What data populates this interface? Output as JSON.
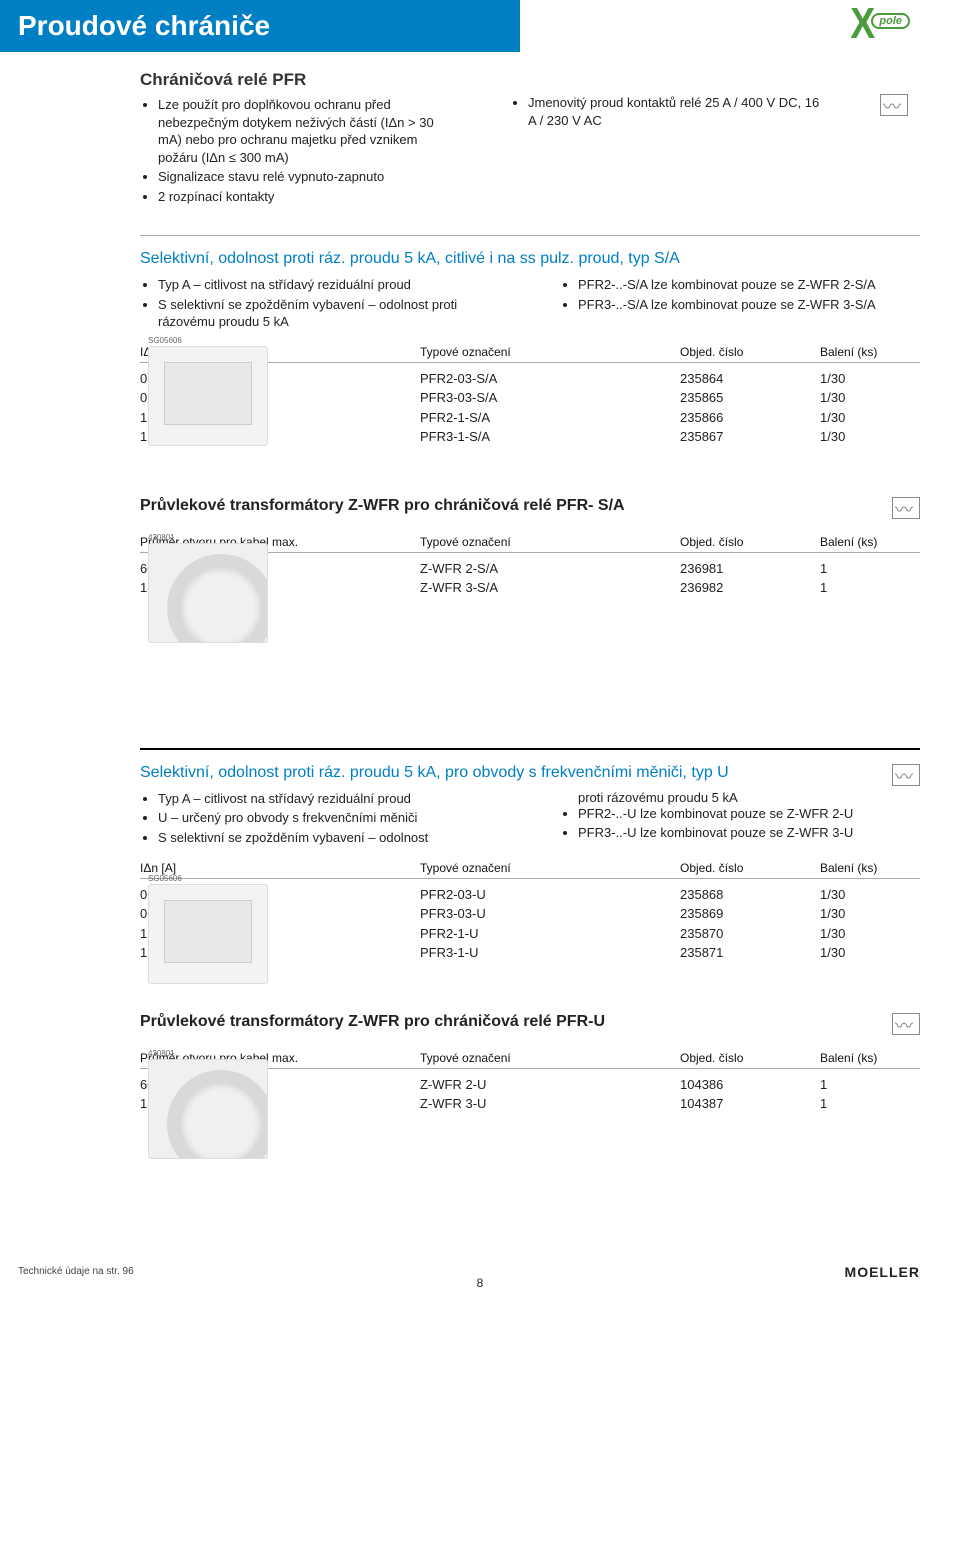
{
  "header": {
    "title": "Proudové chrániče"
  },
  "logo": {
    "x": "X",
    "pill": "pole"
  },
  "intro": {
    "title": "Chráničová relé PFR",
    "left_bullets": [
      "Lze použít pro doplňkovou ochranu před nebezpečným dotykem neživých částí (IΔn > 30 mA) nebo pro ochranu majetku před vznikem požáru (IΔn ≤ 300 mA)",
      "Signalizace stavu relé vypnuto-zapnuto",
      "2 rozpínací kontakty"
    ],
    "right_bullets": [
      "Jmenovitý proud kontaktů relé 25 A / 400 V DC, 16 A / 230 V AC"
    ]
  },
  "section1": {
    "title": "Selektivní, odolnost proti ráz. proudu 5 kA, citlivé i na ss pulz. proud, typ S/A",
    "left_bullets": [
      "Typ A – citlivost na střídavý reziduální proud",
      "S selektivní se zpožděním vybavení – odolnost proti rázovému proudu 5 kA"
    ],
    "right_bullets": [
      "PFR2-..-S/A lze kombinovat pouze se Z-WFR 2-S/A",
      "PFR3-..-S/A lze kombinovat pouze se Z-WFR 3-S/A"
    ],
    "table": {
      "head": [
        "IΔn [A]",
        "Typové označení",
        "Objed. číslo",
        "Balení (ks)"
      ],
      "rows": [
        [
          "0,30",
          "PFR2-03-S/A",
          "235864",
          "1/30"
        ],
        [
          "0,30",
          "PFR3-03-S/A",
          "235865",
          "1/30"
        ],
        [
          "1,0",
          "PFR2-1-S/A",
          "235866",
          "1/30"
        ],
        [
          "1,0",
          "PFR3-1-S/A",
          "235867",
          "1/30"
        ]
      ]
    },
    "side_label": "SG05606"
  },
  "section2": {
    "title": "Průvlekové transformátory Z-WFR pro chráničová relé PFR- S/A",
    "table": {
      "head": [
        "Průměr otvoru pro kabel max.",
        "Typové označení",
        "Objed. číslo",
        "Balení (ks)"
      ],
      "rows": [
        [
          "60 mm",
          "Z-WFR 2-S/A",
          "236981",
          "1"
        ],
        [
          "130 mm",
          "Z-WFR 3-S/A",
          "236982",
          "1"
        ]
      ]
    },
    "side_label": "420801"
  },
  "section3": {
    "title": "Selektivní, odolnost proti ráz. proudu 5 kA, pro obvody s frekvenčními měniči, typ U",
    "left_bullets": [
      "Typ A – citlivost na střídavý reziduální proud",
      "U – určený pro obvody s frekvenčními měniči",
      "S selektivní se zpožděním vybavení – odolnost"
    ],
    "right_text_top": "proti rázovému proudu 5 kA",
    "right_bullets": [
      "PFR2-..-U lze kombinovat pouze se Z-WFR 2-U",
      "PFR3-..-U lze kombinovat pouze se Z-WFR 3-U"
    ],
    "table": {
      "head": [
        "IΔn [A]",
        "Typové označení",
        "Objed. číslo",
        "Balení (ks)"
      ],
      "rows": [
        [
          "0,30",
          "PFR2-03-U",
          "235868",
          "1/30"
        ],
        [
          "0,30",
          "PFR3-03-U",
          "235869",
          "1/30"
        ],
        [
          "1,0",
          "PFR2-1-U",
          "235870",
          "1/30"
        ],
        [
          "1,0",
          "PFR3-1-U",
          "235871",
          "1/30"
        ]
      ]
    },
    "side_label": "SG05606"
  },
  "section4": {
    "title": "Průvlekové transformátory Z-WFR pro chráničová relé PFR-U",
    "table": {
      "head": [
        "Průměr otvoru pro kabel max.",
        "Typové označení",
        "Objed. číslo",
        "Balení (ks)"
      ],
      "rows": [
        [
          "60 mm",
          "Z-WFR 2-U",
          "104386",
          "1"
        ],
        [
          "130 mm",
          "Z-WFR 3-U",
          "104387",
          "1"
        ]
      ]
    },
    "side_label": "420801"
  },
  "footer": {
    "left": "Technické údaje na str. 96",
    "brand": "MOELLER",
    "page": "8"
  },
  "colors": {
    "primary": "#007fc4",
    "logo_green": "#4a9b3b"
  }
}
